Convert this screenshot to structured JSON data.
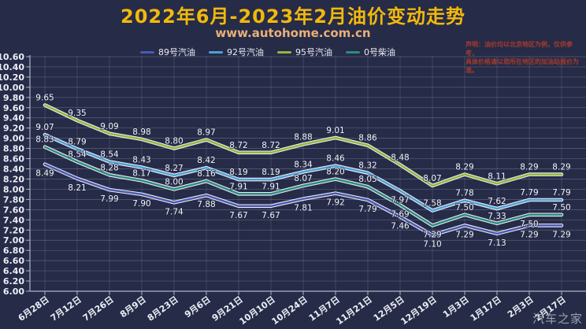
{
  "header": {
    "title": "2022年6月-2023年2月油价变动走势",
    "url": "www.autohome.com.cn",
    "disclaimer": [
      "声明：油价均以北京地区为例，仅供参考，",
      "具体价格请以您所在地区的加油站报价为准。"
    ]
  },
  "watermark": "汽车之家",
  "colors": {
    "background": "#262b47",
    "title": "#f2b90c",
    "url": "#e9b078",
    "disclaimer": "#a63a2c",
    "axis_text": "#eceef6",
    "data_label_text": "#f2f4f8",
    "grid": "#aab2cf",
    "axis_line": "#aeb4cc",
    "line_outline": "#ffffff",
    "watermark": "#9aa1b0"
  },
  "chart_data": {
    "type": "line",
    "title": "2022年6月-2023年2月油价变动走势",
    "categories": [
      "6月28日",
      "7月12日",
      "7月26日",
      "8月9日",
      "8月23日",
      "9月6日",
      "9月21日",
      "10月10日",
      "10月24日",
      "11月7日",
      "11月21日",
      "12月5日",
      "12月19日",
      "1月3日",
      "1月17日",
      "2月3日",
      "2月17日"
    ],
    "series": [
      {
        "name": "89号汽油",
        "color": "#4a59b4",
        "values": [
          8.49,
          8.21,
          7.99,
          7.9,
          7.74,
          7.88,
          7.67,
          7.67,
          7.81,
          7.92,
          7.79,
          7.46,
          7.1,
          7.29,
          7.13,
          7.29,
          7.29
        ]
      },
      {
        "name": "92号汽油",
        "color": "#4fa0d8",
        "values": [
          9.07,
          8.79,
          8.54,
          8.43,
          8.27,
          8.42,
          8.19,
          8.19,
          8.34,
          8.46,
          8.32,
          7.97,
          7.58,
          7.78,
          7.62,
          7.79,
          7.79
        ]
      },
      {
        "name": "95号汽油",
        "color": "#93b63e",
        "values": [
          9.65,
          9.35,
          9.09,
          8.98,
          8.8,
          8.97,
          8.72,
          8.72,
          8.88,
          9.01,
          8.86,
          8.48,
          8.07,
          8.29,
          8.11,
          8.29,
          8.29
        ]
      },
      {
        "name": "0号柴油",
        "color": "#2d8a82",
        "values": [
          8.83,
          8.54,
          8.28,
          8.17,
          8.0,
          8.16,
          7.91,
          7.91,
          8.07,
          8.2,
          8.05,
          7.69,
          7.29,
          7.5,
          7.33,
          7.5,
          7.5
        ]
      }
    ],
    "ylim": [
      6.0,
      10.6
    ],
    "ytick_step": 0.2,
    "yticks": [
      "10.60",
      "10.40",
      "10.20",
      "10.00",
      "9.80",
      "9.60",
      "9.40",
      "9.20",
      "9.00",
      "8.80",
      "8.60",
      "8.40",
      "8.20",
      "8.00",
      "7.80",
      "7.60",
      "7.40",
      "7.20",
      "7.00",
      "6.80",
      "6.60",
      "6.40",
      "6.20",
      "6.00"
    ],
    "grid": true,
    "legend_position": "top"
  }
}
